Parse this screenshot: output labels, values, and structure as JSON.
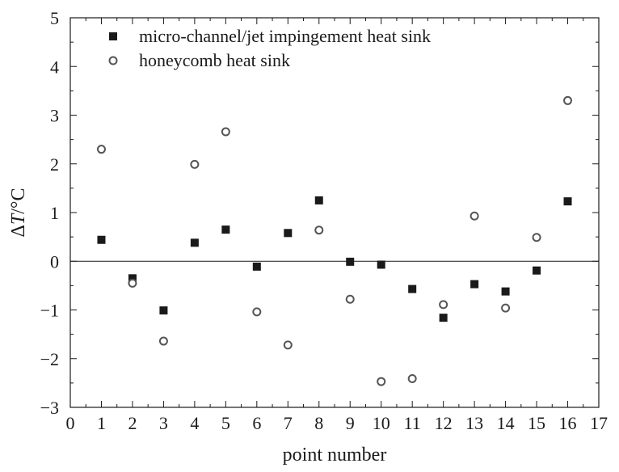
{
  "chart_data": {
    "type": "scatter",
    "xlabel": "point number",
    "ylabel_prefix": "Δ",
    "ylabel_var": "T",
    "ylabel_suffix": "/°C",
    "xlim": [
      0,
      17
    ],
    "ylim": [
      -3,
      5
    ],
    "xticks": [
      0,
      1,
      2,
      3,
      4,
      5,
      6,
      7,
      8,
      9,
      10,
      11,
      12,
      13,
      14,
      15,
      16,
      17
    ],
    "yticks": [
      -3,
      -2,
      -1,
      0,
      1,
      2,
      3,
      4,
      5
    ],
    "ytick_labels": [
      "−3",
      "−2",
      "−1",
      "0",
      "1",
      "2",
      "3",
      "4",
      "5"
    ],
    "grid": false,
    "zero_line": true,
    "legend_position": "top-left",
    "series": [
      {
        "name": "micro-channel/jet impingement heat sink",
        "marker": "filled-square",
        "color": "#1a1a1a",
        "x": [
          1,
          2,
          3,
          4,
          5,
          6,
          7,
          8,
          9,
          10,
          11,
          12,
          13,
          14,
          15,
          16
        ],
        "y": [
          0.44,
          -0.35,
          -1.01,
          0.38,
          0.65,
          -0.11,
          0.58,
          1.25,
          -0.01,
          -0.07,
          -0.57,
          -1.16,
          -0.47,
          -0.62,
          -0.19,
          1.23
        ]
      },
      {
        "name": "honeycomb heat sink",
        "marker": "open-circle",
        "color": "#555555",
        "x": [
          1,
          2,
          3,
          4,
          5,
          6,
          7,
          8,
          9,
          10,
          11,
          12,
          13,
          14,
          15,
          16
        ],
        "y": [
          2.3,
          -0.45,
          -1.64,
          1.99,
          2.66,
          -1.04,
          -1.72,
          0.64,
          -0.78,
          -2.47,
          -2.41,
          -0.89,
          0.93,
          -0.96,
          0.49,
          3.3
        ]
      }
    ]
  }
}
